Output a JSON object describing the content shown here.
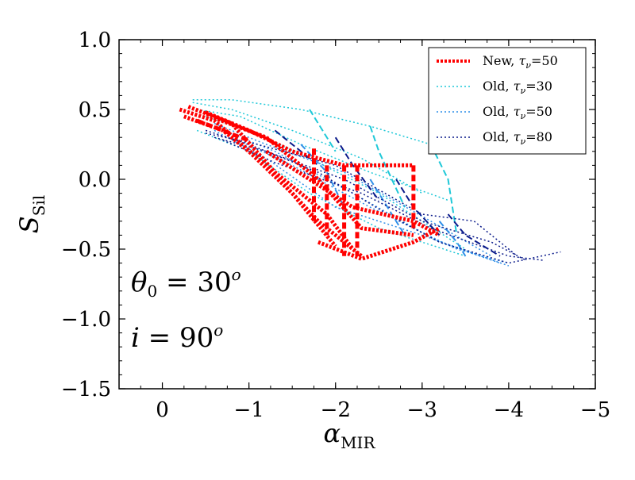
{
  "chart_data": {
    "type": "line",
    "xlabel_main": "α",
    "xlabel_sub": "MIR",
    "ylabel_main": "S",
    "ylabel_sub": "Sil",
    "xlim": [
      0.5,
      -5
    ],
    "ylim": [
      -1.5,
      1.0
    ],
    "x_inverted": true,
    "xticks": [
      0,
      -1,
      -2,
      -3,
      -4,
      -5
    ],
    "xtick_labels": [
      "0",
      "−1",
      "−2",
      "−3",
      "−4",
      "−5"
    ],
    "yticks": [
      1.0,
      0.5,
      0.0,
      -0.5,
      -1.0,
      -1.5
    ],
    "ytick_labels": [
      "1.0",
      "0.5",
      "0.0",
      "−0.5",
      "−1.0",
      "−1.5"
    ],
    "legend_position": "top-right",
    "annotations": [
      {
        "text": "θ0 = 30o",
        "main": "θ",
        "sub": "0",
        "eq": " = 30",
        "sup": "o"
      },
      {
        "text": "i = 90o",
        "main": "i",
        "sub": "",
        "eq": " = 90",
        "sup": "o"
      }
    ],
    "series": [
      {
        "label_prefix": "New, ",
        "label_tau": "τ",
        "label_nu": "ν",
        "label_value": "=50",
        "color": "#ff0000",
        "style": "dotted-thick",
        "lines": [
          {
            "x": [
              -0.2,
              -0.6,
              -1.2,
              -1.8,
              -2.3
            ],
            "y": [
              0.5,
              0.42,
              0.1,
              -0.3,
              -0.55
            ],
            "dash": "3,2",
            "w": 5
          },
          {
            "x": [
              -0.3,
              -0.8,
              -1.3,
              -1.9,
              -2.2
            ],
            "y": [
              0.52,
              0.4,
              0.05,
              -0.25,
              -0.5
            ],
            "dash": "3,2",
            "w": 5
          },
          {
            "x": [
              -0.25,
              -0.7,
              -1.0,
              -1.5,
              -2.0
            ],
            "y": [
              0.45,
              0.35,
              0.2,
              -0.1,
              -0.48
            ],
            "dash": "3,2",
            "w": 5
          },
          {
            "x": [
              -0.5,
              -1.0,
              -1.5,
              -2.1,
              -2.9
            ],
            "y": [
              0.48,
              0.35,
              0.2,
              0.1,
              0.1
            ],
            "dash": "3,2",
            "w": 5
          },
          {
            "x": [
              -0.6,
              -1.2,
              -1.8,
              -2.3,
              -2.9
            ],
            "y": [
              0.44,
              0.3,
              0.0,
              -0.35,
              -0.4
            ],
            "dash": "3,2",
            "w": 5
          },
          {
            "x": [
              -1.2,
              -1.7,
              -2.2,
              -2.9,
              -3.2
            ],
            "y": [
              0.2,
              0.0,
              -0.2,
              -0.3,
              -0.4
            ],
            "dash": "3,2",
            "w": 5
          },
          {
            "x": [
              -1.8,
              -2.3,
              -2.9,
              -3.2
            ],
            "y": [
              -0.45,
              -0.57,
              -0.45,
              -0.35
            ],
            "dash": "3,2",
            "w": 5
          },
          {
            "x": [
              -0.4,
              -0.7,
              -0.9,
              -1.0
            ],
            "y": [
              0.42,
              0.35,
              0.3,
              0.28
            ],
            "dash": "8,4",
            "w": 5
          },
          {
            "x": [
              -1.75,
              -1.75
            ],
            "y": [
              0.22,
              -0.3
            ],
            "dash": "8,4",
            "w": 5
          },
          {
            "x": [
              -1.9,
              -1.9
            ],
            "y": [
              0.1,
              -0.4
            ],
            "dash": "8,4",
            "w": 5
          },
          {
            "x": [
              -2.1,
              -2.1
            ],
            "y": [
              0.1,
              -0.55
            ],
            "dash": "8,4",
            "w": 5
          },
          {
            "x": [
              -2.25,
              -2.25
            ],
            "y": [
              0.1,
              -0.55
            ],
            "dash": "8,4",
            "w": 5
          },
          {
            "x": [
              -2.9,
              -2.9
            ],
            "y": [
              0.1,
              -0.35
            ],
            "dash": "8,4",
            "w": 5
          }
        ]
      },
      {
        "label_prefix": "Old, ",
        "label_tau": "τ",
        "label_nu": "ν",
        "label_value": "=30",
        "color": "#1ec8d8",
        "style": "dotted",
        "lines": [
          {
            "x": [
              -0.35,
              -0.8,
              -1.6,
              -2.4,
              -3.1
            ],
            "y": [
              0.57,
              0.57,
              0.5,
              0.38,
              0.25
            ],
            "dash": "2,3",
            "w": 1.5
          },
          {
            "x": [
              -0.35,
              -0.8,
              -1.5,
              -2.3,
              -3.0
            ],
            "y": [
              0.55,
              0.5,
              0.35,
              0.15,
              -0.1
            ],
            "dash": "2,3",
            "w": 1.5
          },
          {
            "x": [
              -0.4,
              -0.9,
              -1.6,
              -2.4,
              -3.3
            ],
            "y": [
              0.5,
              0.45,
              0.25,
              0.05,
              -0.15
            ],
            "dash": "2,3",
            "w": 1.5
          },
          {
            "x": [
              -0.5,
              -1.0,
              -1.7,
              -2.5,
              -3.5
            ],
            "y": [
              0.45,
              0.35,
              0.15,
              -0.1,
              -0.5
            ],
            "dash": "2,3",
            "w": 1.5
          },
          {
            "x": [
              -0.4,
              -1.0,
              -1.7,
              -2.5,
              -3.5
            ],
            "y": [
              0.35,
              0.2,
              -0.1,
              -0.35,
              -0.55
            ],
            "dash": "2,3",
            "w": 1.5
          },
          {
            "x": [
              -1.7,
              -1.8,
              -2.0
            ],
            "y": [
              0.5,
              0.4,
              0.2
            ],
            "dash": "8,4",
            "w": 2
          },
          {
            "x": [
              -2.4,
              -2.5,
              -2.8
            ],
            "y": [
              0.38,
              0.2,
              -0.2
            ],
            "dash": "8,4",
            "w": 2
          },
          {
            "x": [
              -3.1,
              -3.3,
              -3.4
            ],
            "y": [
              0.25,
              0.0,
              -0.4
            ],
            "dash": "8,4",
            "w": 2
          }
        ]
      },
      {
        "label_prefix": "Old, ",
        "label_tau": "τ",
        "label_nu": "ν",
        "label_value": "=50",
        "color": "#2f8fe8",
        "style": "dotted",
        "lines": [
          {
            "x": [
              -0.6,
              -1.2,
              -2.0,
              -3.0,
              -4.0
            ],
            "y": [
              0.35,
              0.15,
              -0.2,
              -0.4,
              -0.62
            ],
            "dash": "2,3",
            "w": 1.5
          },
          {
            "x": [
              -0.6,
              -1.2,
              -2.1,
              -3.1,
              -3.8
            ],
            "y": [
              0.4,
              0.25,
              0.05,
              -0.3,
              -0.55
            ],
            "dash": "2,3",
            "w": 1.5
          },
          {
            "x": [
              -0.7,
              -1.3,
              -2.2,
              -3.2,
              -3.9
            ],
            "y": [
              0.35,
              0.2,
              -0.1,
              -0.45,
              -0.6
            ],
            "dash": "2,3",
            "w": 1.5
          },
          {
            "x": [
              -0.8,
              -1.5,
              -2.4,
              -3.4,
              -4.0
            ],
            "y": [
              0.3,
              0.1,
              -0.2,
              -0.5,
              -0.6
            ],
            "dash": "2,3",
            "w": 1.5
          },
          {
            "x": [
              -1.6,
              -1.9,
              -2.1
            ],
            "y": [
              0.25,
              0.05,
              -0.2
            ],
            "dash": "8,4",
            "w": 2
          },
          {
            "x": [
              -2.4,
              -2.6,
              -2.8
            ],
            "y": [
              0.0,
              -0.2,
              -0.4
            ],
            "dash": "8,4",
            "w": 2
          },
          {
            "x": [
              -3.2,
              -3.4,
              -3.5
            ],
            "y": [
              -0.3,
              -0.45,
              -0.55
            ],
            "dash": "8,4",
            "w": 2
          }
        ]
      },
      {
        "label_prefix": "Old, ",
        "label_tau": "τ",
        "label_nu": "ν",
        "label_value": "=80",
        "color": "#0a1a8a",
        "style": "dotted",
        "lines": [
          {
            "x": [
              -0.5,
              -1.0,
              -1.8,
              -2.6,
              -3.2,
              -4.0,
              -4.6
            ],
            "y": [
              0.35,
              0.25,
              0.05,
              -0.25,
              -0.45,
              -0.6,
              -0.52
            ],
            "dash": "2,3",
            "w": 1.5
          },
          {
            "x": [
              -0.5,
              -1.1,
              -2.0,
              -3.0,
              -3.6,
              -4.1
            ],
            "y": [
              0.33,
              0.25,
              0.1,
              -0.25,
              -0.3,
              -0.55
            ],
            "dash": "2,3",
            "w": 1.5
          },
          {
            "x": [
              -0.6,
              -1.2,
              -2.1,
              -3.0,
              -3.8,
              -4.2
            ],
            "y": [
              0.3,
              0.2,
              0.0,
              -0.3,
              -0.45,
              -0.58
            ],
            "dash": "2,3",
            "w": 1.5
          },
          {
            "x": [
              -0.7,
              -1.3,
              -2.3,
              -3.1,
              -4.0,
              -4.4
            ],
            "y": [
              0.28,
              0.12,
              -0.1,
              -0.35,
              -0.55,
              -0.58
            ],
            "dash": "2,3",
            "w": 1.5
          },
          {
            "x": [
              -1.3,
              -1.5,
              -1.8
            ],
            "y": [
              0.35,
              0.25,
              0.1
            ],
            "dash": "8,4",
            "w": 2
          },
          {
            "x": [
              -2.0,
              -2.2,
              -2.5
            ],
            "y": [
              0.3,
              0.1,
              -0.15
            ],
            "dash": "8,4",
            "w": 2
          },
          {
            "x": [
              -2.7,
              -2.9,
              -3.2
            ],
            "y": [
              0.0,
              -0.2,
              -0.4
            ],
            "dash": "8,4",
            "w": 2
          },
          {
            "x": [
              -3.3,
              -3.5,
              -3.9
            ],
            "y": [
              -0.25,
              -0.4,
              -0.55
            ],
            "dash": "8,4",
            "w": 2
          }
        ]
      }
    ]
  }
}
